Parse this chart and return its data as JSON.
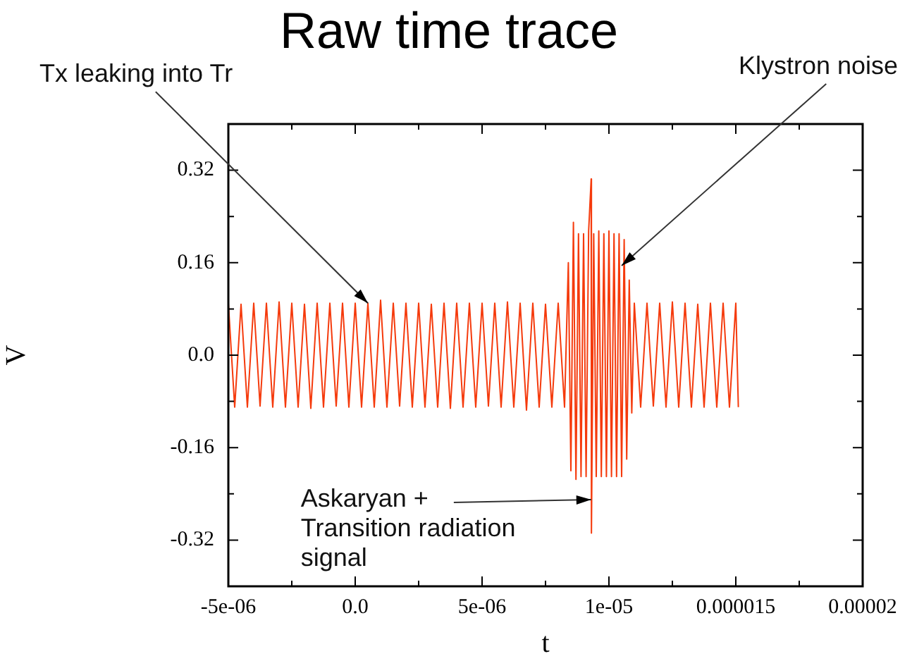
{
  "chart_data": {
    "type": "line",
    "title": "Raw time trace",
    "xlabel": "t",
    "ylabel": "V",
    "x": [
      -5e-06,
      -4.75e-06,
      -4.5e-06,
      -4.25e-06,
      -4e-06,
      -3.75e-06,
      -3.5e-06,
      -3.25e-06,
      -3e-06,
      -2.75e-06,
      -2.5e-06,
      -2.25e-06,
      -2e-06,
      -1.75e-06,
      -1.5e-06,
      -1.25e-06,
      -1e-06,
      -7.5e-07,
      -5e-07,
      -2.5e-07,
      0,
      2.5e-07,
      5e-07,
      7.5e-07,
      1e-06,
      1.25e-06,
      1.5e-06,
      1.75e-06,
      2e-06,
      2.25e-06,
      2.5e-06,
      2.75e-06,
      3e-06,
      3.25e-06,
      3.5e-06,
      3.75e-06,
      4e-06,
      4.25e-06,
      4.5e-06,
      4.75e-06,
      5e-06,
      5.25e-06,
      5.5e-06,
      5.75e-06,
      6e-06,
      6.25e-06,
      6.5e-06,
      6.75e-06,
      7e-06,
      7.25e-06,
      7.5e-06,
      7.75e-06,
      8e-06,
      8.25e-06,
      8.4e-06,
      8.5e-06,
      8.6e-06,
      8.7e-06,
      8.8e-06,
      8.9e-06,
      9e-06,
      9.1e-06,
      9.2e-06,
      9.3e-06,
      9.31e-06,
      9.4e-06,
      9.5e-06,
      9.6e-06,
      9.7e-06,
      9.8e-06,
      9.9e-06,
      1e-05,
      1.01e-05,
      1.02e-05,
      1.03e-05,
      1.04e-05,
      1.05e-05,
      1.06e-05,
      1.07e-05,
      1.08e-05,
      1.09e-05,
      1.1e-05,
      1.125e-05,
      1.15e-05,
      1.175e-05,
      1.2e-05,
      1.225e-05,
      1.25e-05,
      1.275e-05,
      1.3e-05,
      1.325e-05,
      1.35e-05,
      1.375e-05,
      1.4e-05,
      1.425e-05,
      1.45e-05,
      1.475e-05,
      1.5e-05,
      1.51e-05
    ],
    "series": [
      {
        "color": "#f53a0c",
        "values": [
          0.09,
          -0.09,
          0.088,
          -0.09,
          0.09,
          -0.088,
          0.09,
          -0.09,
          0.092,
          -0.09,
          0.09,
          -0.09,
          0.088,
          -0.092,
          0.09,
          -0.09,
          0.09,
          -0.088,
          0.09,
          -0.09,
          0.09,
          -0.09,
          0.09,
          -0.09,
          0.095,
          -0.09,
          0.09,
          -0.088,
          0.09,
          -0.09,
          0.09,
          -0.09,
          0.088,
          -0.09,
          0.09,
          -0.092,
          0.09,
          -0.09,
          0.09,
          -0.09,
          0.09,
          -0.088,
          0.09,
          -0.09,
          0.092,
          -0.09,
          0.09,
          -0.095,
          0.09,
          -0.09,
          0.088,
          -0.09,
          0.09,
          -0.09,
          0.16,
          -0.2,
          0.23,
          -0.215,
          0.21,
          -0.21,
          0.21,
          -0.21,
          0.215,
          0.305,
          -0.308,
          0.21,
          -0.21,
          0.215,
          -0.21,
          0.21,
          -0.21,
          0.215,
          -0.21,
          0.21,
          -0.21,
          0.21,
          -0.21,
          0.2,
          -0.18,
          0.13,
          -0.1,
          0.09,
          -0.09,
          0.09,
          -0.088,
          0.09,
          -0.09,
          0.092,
          -0.09,
          0.09,
          -0.09,
          0.088,
          -0.09,
          0.09,
          -0.09,
          0.09,
          -0.09,
          0.09,
          -0.09
        ]
      }
    ],
    "xlim": [
      -5e-06,
      2e-05
    ],
    "xticks": [
      {
        "value": -5e-06,
        "label": "-5e-06"
      },
      {
        "value": -2.5e-06,
        "label": null
      },
      {
        "value": 0,
        "label": "0.0"
      },
      {
        "value": 2.5e-06,
        "label": null
      },
      {
        "value": 5e-06,
        "label": "5e-06"
      },
      {
        "value": 7.5e-06,
        "label": null
      },
      {
        "value": 1e-05,
        "label": "1e-05"
      },
      {
        "value": 1.25e-05,
        "label": null
      },
      {
        "value": 1.5e-05,
        "label": "0.000015"
      },
      {
        "value": 1.75e-05,
        "label": null
      },
      {
        "value": 2e-05,
        "label": "0.00002"
      }
    ],
    "ylim": [
      -0.4,
      0.4
    ],
    "yticks": [
      -0.32,
      {
        "value": -0.24,
        "label": null
      },
      -0.16,
      {
        "value": -0.08,
        "label": null
      },
      {
        "value": 0,
        "label": "0.0"
      },
      {
        "value": 0.08,
        "label": null
      },
      0.16,
      {
        "value": 0.24,
        "label": null
      },
      0.32
    ],
    "annotations": [
      {
        "text": "Tx leaking into Tr",
        "x": 5e-07,
        "y": 0.09
      },
      {
        "text": "Klystron noise",
        "x": 1.05e-05,
        "y": 0.155
      },
      {
        "text": "Askaryan +\nTransition radiation\nsignal",
        "x": 9.3e-06,
        "y": -0.25
      }
    ],
    "grid": false,
    "legend": false,
    "marker": "none",
    "line_style": "solid"
  }
}
